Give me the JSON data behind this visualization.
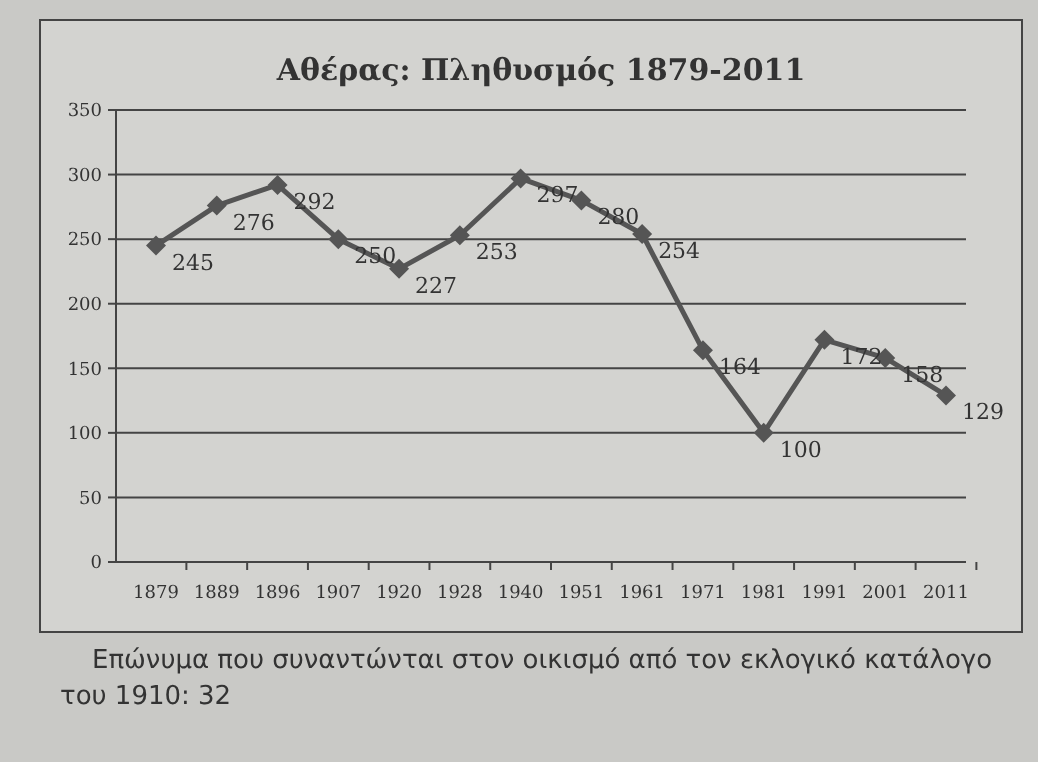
{
  "chart_data": {
    "type": "line",
    "title": "Αθέρας: Πληθυσμός 1879-2011",
    "categories": [
      "1879",
      "1889",
      "1896",
      "1907",
      "1920",
      "1928",
      "1940",
      "1951",
      "1961",
      "1971",
      "1981",
      "1991",
      "2001",
      "2011"
    ],
    "series": [
      {
        "color": "#555555",
        "values": [
          245,
          276,
          292,
          250,
          227,
          253,
          297,
          280,
          254,
          164,
          100,
          172,
          158,
          129
        ]
      }
    ],
    "ylim": [
      0,
      350
    ],
    "yticks": [
      0,
      50,
      100,
      150,
      200,
      250,
      300,
      350
    ],
    "grid": "y",
    "marker": "diamond",
    "line_style": "solid",
    "data_labels": true,
    "annotations": [
      "Επώνυμα που συναντώνται στον οικισμό από τον εκλογικό κατάλογο του 1910: 32"
    ]
  }
}
